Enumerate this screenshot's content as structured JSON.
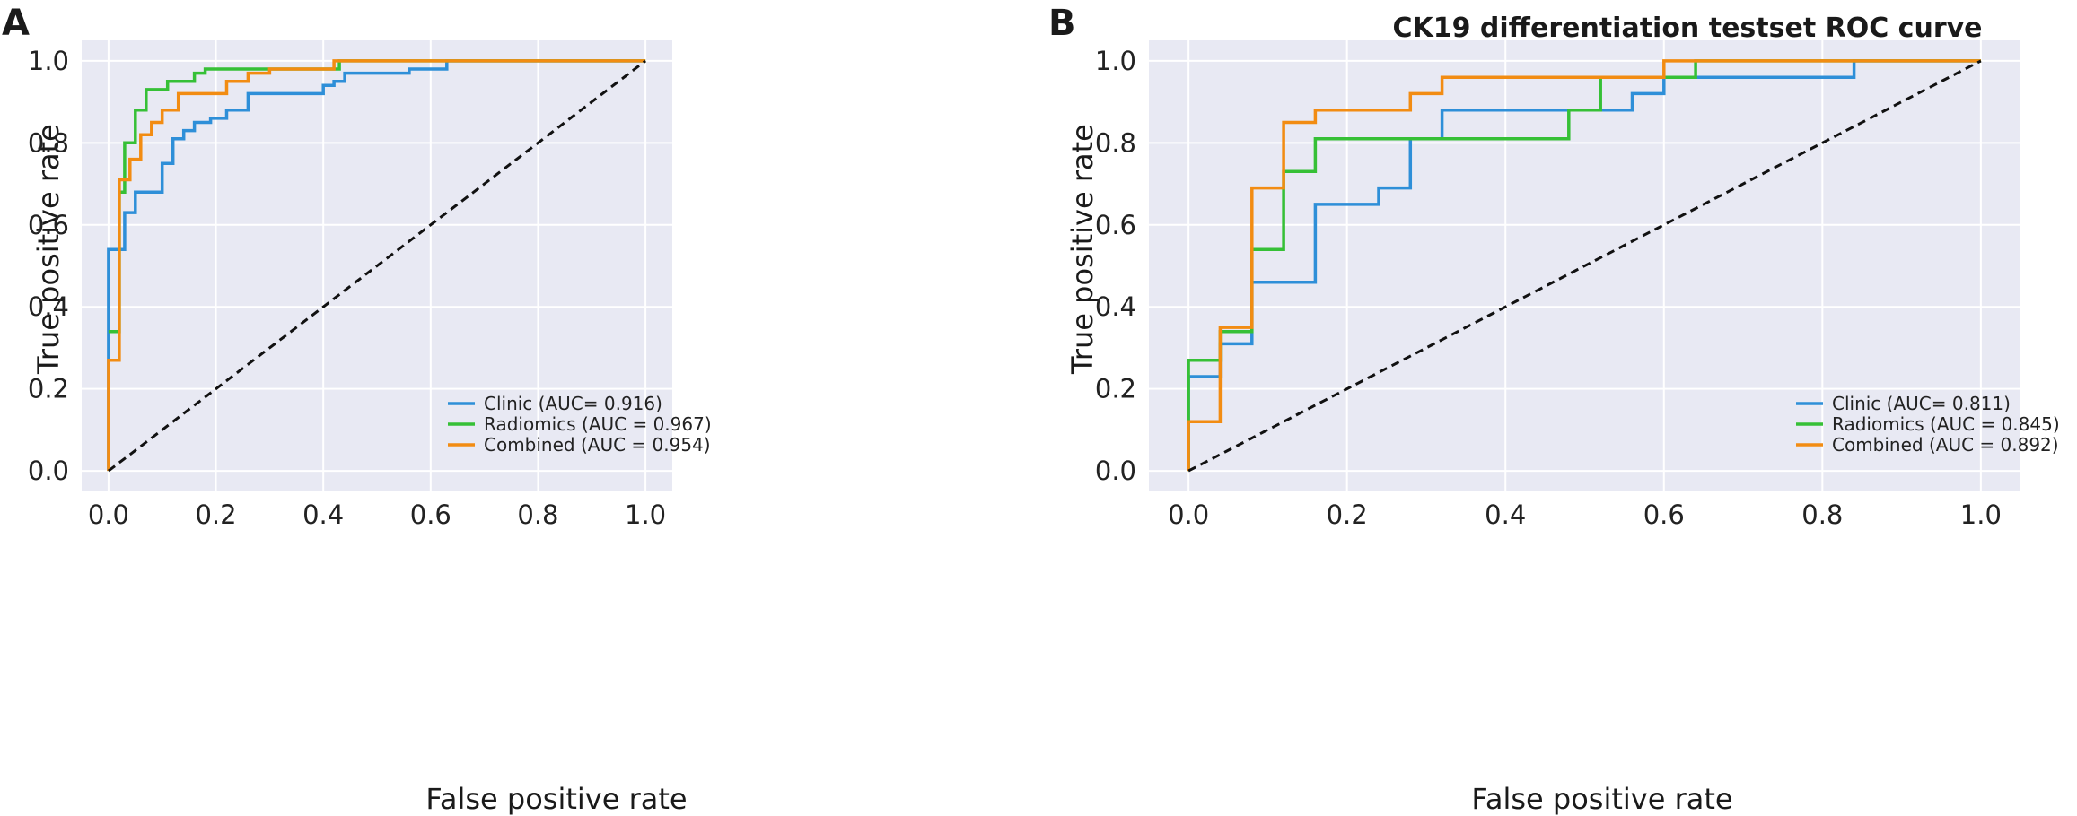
{
  "panels": {
    "A": {
      "letter": "A"
    },
    "B": {
      "letter": "B"
    }
  },
  "chart_data": [
    {
      "type": "line",
      "panel": "A",
      "title": "",
      "xlabel": "False positive rate",
      "ylabel": "True positive rate",
      "xlim": [
        -0.05,
        1.05
      ],
      "ylim": [
        -0.05,
        1.05
      ],
      "xticks": [
        "0.0",
        "0.2",
        "0.4",
        "0.6",
        "0.8",
        "1.0"
      ],
      "yticks": [
        "0.0",
        "0.2",
        "0.4",
        "0.6",
        "0.8",
        "1.0"
      ],
      "grid": true,
      "legend_position": "bottom-right",
      "background": "#e8e9f3",
      "series": [
        {
          "name": "Clinic (AUC= 0.916)",
          "color": "#2e8fd8",
          "x": [
            0,
            0,
            0.03,
            0.03,
            0.05,
            0.05,
            0.1,
            0.1,
            0.12,
            0.12,
            0.14,
            0.14,
            0.16,
            0.16,
            0.19,
            0.19,
            0.22,
            0.22,
            0.26,
            0.26,
            0.4,
            0.4,
            0.42,
            0.42,
            0.44,
            0.44,
            0.56,
            0.56,
            0.63,
            0.63,
            1.0
          ],
          "y": [
            0,
            0.54,
            0.54,
            0.63,
            0.63,
            0.68,
            0.68,
            0.75,
            0.75,
            0.81,
            0.81,
            0.83,
            0.83,
            0.85,
            0.85,
            0.86,
            0.86,
            0.88,
            0.88,
            0.92,
            0.92,
            0.94,
            0.94,
            0.95,
            0.95,
            0.97,
            0.97,
            0.98,
            0.98,
            1.0,
            1.0
          ]
        },
        {
          "name": "Radiomics (AUC = 0.967)",
          "color": "#36c036",
          "x": [
            0,
            0.02,
            0.02,
            0.03,
            0.03,
            0.05,
            0.05,
            0.07,
            0.07,
            0.11,
            0.11,
            0.16,
            0.16,
            0.18,
            0.18,
            0.3,
            0.3,
            0.43,
            0.43,
            1.0
          ],
          "y": [
            0.34,
            0.34,
            0.68,
            0.68,
            0.8,
            0.8,
            0.88,
            0.88,
            0.93,
            0.93,
            0.95,
            0.95,
            0.97,
            0.97,
            0.98,
            0.98,
            0.98,
            0.98,
            1.0,
            1.0
          ]
        },
        {
          "name": "Combined (AUC = 0.954)",
          "color": "#f28c12",
          "x": [
            0,
            0,
            0.02,
            0.02,
            0.04,
            0.04,
            0.06,
            0.06,
            0.08,
            0.08,
            0.1,
            0.1,
            0.13,
            0.13,
            0.22,
            0.22,
            0.26,
            0.26,
            0.3,
            0.3,
            0.42,
            0.42,
            1.0
          ],
          "y": [
            0,
            0.27,
            0.27,
            0.71,
            0.71,
            0.76,
            0.76,
            0.82,
            0.82,
            0.85,
            0.85,
            0.88,
            0.88,
            0.92,
            0.92,
            0.95,
            0.95,
            0.97,
            0.97,
            0.98,
            0.98,
            1.0,
            1.0
          ]
        },
        {
          "name": "",
          "color": "#111111",
          "dashed": true,
          "x": [
            0,
            1
          ],
          "y": [
            0,
            1
          ]
        }
      ]
    },
    {
      "type": "line",
      "panel": "B",
      "title": "CK19 differentiation testset ROC curve",
      "xlabel": "False positive rate",
      "ylabel": "True positive rate",
      "xlim": [
        -0.05,
        1.05
      ],
      "ylim": [
        -0.05,
        1.05
      ],
      "xticks": [
        "0.0",
        "0.2",
        "0.4",
        "0.6",
        "0.8",
        "1.0"
      ],
      "yticks": [
        "0.0",
        "0.2",
        "0.4",
        "0.6",
        "0.8",
        "1.0"
      ],
      "grid": true,
      "legend_position": "bottom-right",
      "background": "#e8e9f3",
      "series": [
        {
          "name": "Clinic (AUC= 0.811)",
          "color": "#2e8fd8",
          "x": [
            0,
            0,
            0.04,
            0.04,
            0.08,
            0.08,
            0.16,
            0.16,
            0.24,
            0.24,
            0.28,
            0.28,
            0.32,
            0.32,
            0.56,
            0.56,
            0.6,
            0.6,
            0.84,
            0.84,
            1.0
          ],
          "y": [
            0,
            0.23,
            0.23,
            0.31,
            0.31,
            0.46,
            0.46,
            0.65,
            0.65,
            0.69,
            0.69,
            0.81,
            0.81,
            0.88,
            0.88,
            0.92,
            0.92,
            0.96,
            0.96,
            1.0,
            1.0
          ]
        },
        {
          "name": "Radiomics (AUC = 0.845)",
          "color": "#36c036",
          "x": [
            0,
            0,
            0.04,
            0.04,
            0.08,
            0.08,
            0.12,
            0.12,
            0.16,
            0.16,
            0.48,
            0.48,
            0.52,
            0.52,
            0.6,
            0.6,
            0.64,
            0.64,
            1.0
          ],
          "y": [
            0,
            0.27,
            0.27,
            0.34,
            0.34,
            0.54,
            0.54,
            0.73,
            0.73,
            0.81,
            0.81,
            0.88,
            0.88,
            0.96,
            0.96,
            0.96,
            0.96,
            1.0,
            1.0
          ]
        },
        {
          "name": "Combined (AUC = 0.892)",
          "color": "#f28c12",
          "x": [
            0,
            0,
            0.04,
            0.04,
            0.08,
            0.08,
            0.12,
            0.12,
            0.16,
            0.16,
            0.28,
            0.28,
            0.32,
            0.32,
            0.6,
            0.6,
            1.0
          ],
          "y": [
            0,
            0.12,
            0.12,
            0.35,
            0.35,
            0.69,
            0.69,
            0.85,
            0.85,
            0.88,
            0.88,
            0.92,
            0.92,
            0.96,
            0.96,
            1.0,
            1.0
          ]
        },
        {
          "name": "",
          "color": "#111111",
          "dashed": true,
          "x": [
            0,
            1
          ],
          "y": [
            0,
            1
          ]
        }
      ]
    }
  ]
}
